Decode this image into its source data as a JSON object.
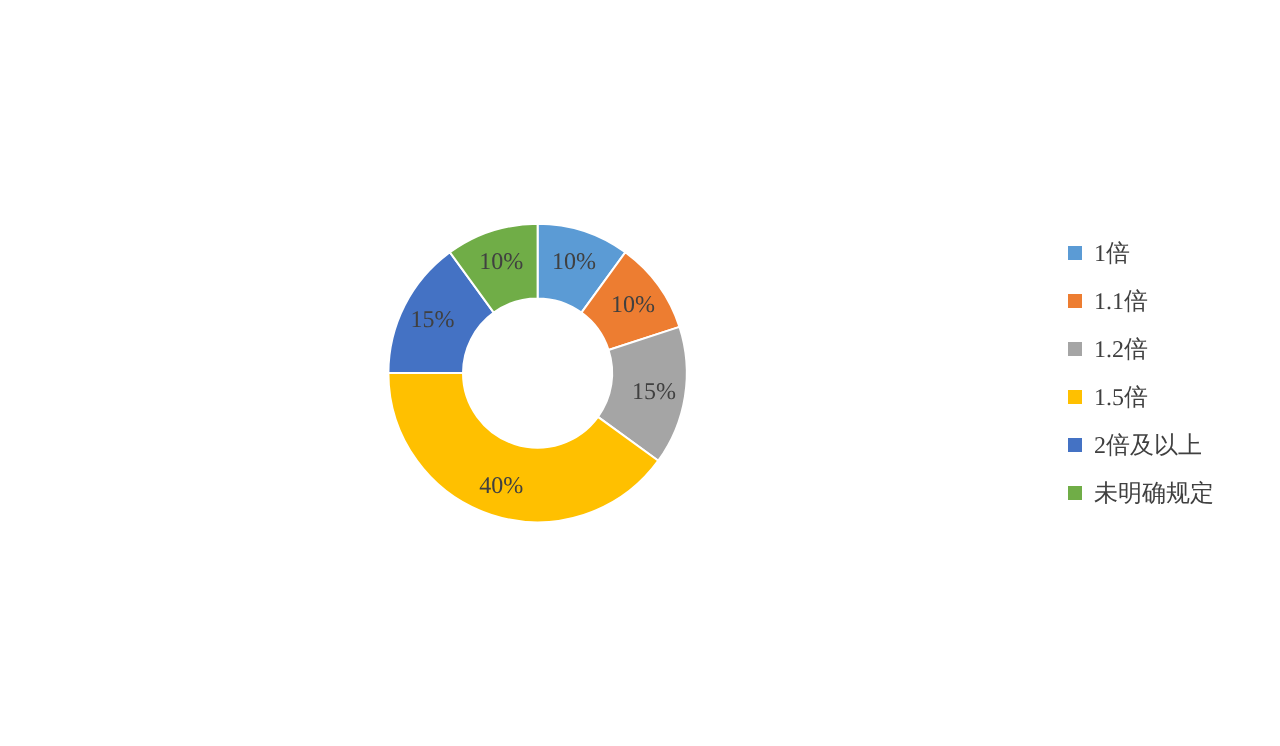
{
  "chart_data": {
    "type": "donut",
    "categories": [
      "1倍",
      "1.1倍",
      "1.2倍",
      "1.5倍",
      "2倍及以上",
      "未明确规定"
    ],
    "values": [
      10,
      10,
      15,
      40,
      15,
      10
    ],
    "value_labels": [
      "10%",
      "10%",
      "15%",
      "40%",
      "15%",
      "10%"
    ],
    "colors": [
      "#5b9bd5",
      "#ed7d31",
      "#a5a5a5",
      "#ffc000",
      "#4472c4",
      "#70ad47"
    ],
    "legend": "right"
  }
}
